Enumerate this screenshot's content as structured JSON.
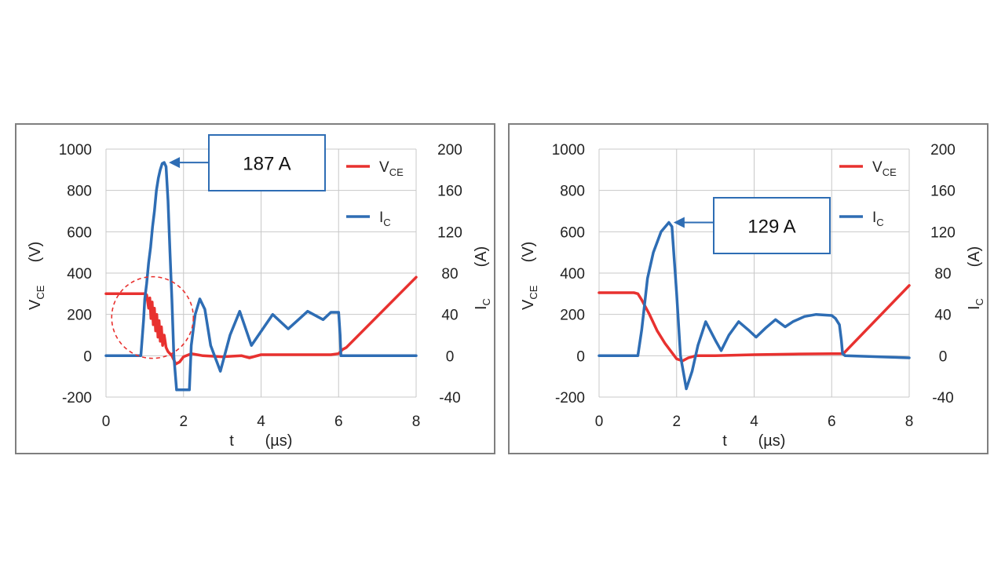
{
  "chart_data": [
    {
      "type": "line",
      "x_unit": "µs",
      "xlabel": "t",
      "xlabel_unit": "(µs)",
      "ylabel_left": "V",
      "ylabel_left_sub": "CE",
      "ylabel_left_unit": "(V)",
      "ylabel_right": "I",
      "ylabel_right_sub": "C",
      "ylabel_right_unit": "(A)",
      "xlim": [
        0,
        8
      ],
      "ylim_left": [
        -200,
        1000
      ],
      "ylim_right": [
        -40,
        200
      ],
      "x_ticks": [
        "0",
        "2",
        "4",
        "6",
        "8"
      ],
      "y_left_ticks": [
        "1000",
        "800",
        "600",
        "400",
        "200",
        "0",
        "-200"
      ],
      "y_right_ticks": [
        "200",
        "160",
        "120",
        "80",
        "40",
        "0",
        "-40"
      ],
      "grid": true,
      "legend_position": "top-right",
      "annotation": "187 A",
      "annotation_point": [
        1.5,
        187
      ],
      "highlight_circle_center": [
        1.2,
        37
      ],
      "series": [
        {
          "name": "V",
          "name_sub": "CE",
          "axis": "left",
          "color": "#e8312f",
          "x": [
            0,
            1.0,
            1.05,
            1.1,
            1.13,
            1.16,
            1.19,
            1.22,
            1.25,
            1.28,
            1.31,
            1.34,
            1.37,
            1.4,
            1.43,
            1.46,
            1.5,
            1.55,
            1.6,
            1.7,
            1.8,
            1.9,
            2.0,
            2.2,
            2.5,
            3.0,
            3.5,
            3.7,
            4.0,
            5.0,
            5.8,
            6.0,
            6.1,
            6.2,
            8.0
          ],
          "y": [
            300,
            300,
            295,
            230,
            280,
            180,
            260,
            150,
            230,
            120,
            200,
            90,
            170,
            70,
            140,
            50,
            100,
            40,
            20,
            0,
            -40,
            -30,
            -5,
            10,
            0,
            -5,
            0,
            -10,
            5,
            5,
            5,
            10,
            30,
            40,
            380
          ]
        },
        {
          "name": "I",
          "name_sub": "C",
          "axis": "right",
          "color": "#2e6db4",
          "x": [
            0,
            0.9,
            0.92,
            0.97,
            1.0,
            1.05,
            1.1,
            1.15,
            1.2,
            1.25,
            1.3,
            1.35,
            1.4,
            1.45,
            1.5,
            1.55,
            1.6,
            1.65,
            1.7,
            1.75,
            1.82,
            1.85,
            2.0,
            2.15,
            2.2,
            2.3,
            2.42,
            2.55,
            2.7,
            2.95,
            3.2,
            3.45,
            3.75,
            4.3,
            4.7,
            5.2,
            5.6,
            5.8,
            5.9,
            6.0,
            6.04,
            6.06,
            6.1,
            8.0
          ],
          "y": [
            0,
            0,
            10,
            35,
            55,
            70,
            90,
            105,
            125,
            140,
            160,
            172,
            180,
            186,
            187,
            183,
            150,
            100,
            55,
            0,
            -33,
            -33,
            -33,
            -33,
            10,
            40,
            55,
            45,
            10,
            -15,
            20,
            43,
            10,
            40,
            26,
            43,
            35,
            42,
            42,
            42,
            20,
            0,
            0,
            0
          ]
        }
      ]
    },
    {
      "type": "line",
      "x_unit": "µs",
      "xlabel": "t",
      "xlabel_unit": "(µs)",
      "ylabel_left": "V",
      "ylabel_left_sub": "CE",
      "ylabel_left_unit": "(V)",
      "ylabel_right": "I",
      "ylabel_right_sub": "C",
      "ylabel_right_unit": "(A)",
      "xlim": [
        0,
        8
      ],
      "ylim_left": [
        -200,
        1000
      ],
      "ylim_right": [
        -40,
        200
      ],
      "x_ticks": [
        "0",
        "2",
        "4",
        "6",
        "8"
      ],
      "y_left_ticks": [
        "1000",
        "800",
        "600",
        "400",
        "200",
        "0",
        "-200"
      ],
      "y_right_ticks": [
        "200",
        "160",
        "120",
        "80",
        "40",
        "0",
        "-40"
      ],
      "grid": true,
      "legend_position": "top-right",
      "annotation": "129 A",
      "annotation_point": [
        1.8,
        129
      ],
      "series": [
        {
          "name": "V",
          "name_sub": "CE",
          "axis": "left",
          "color": "#e8312f",
          "x": [
            0,
            0.9,
            1.0,
            1.1,
            1.3,
            1.5,
            1.7,
            1.9,
            2.0,
            2.15,
            2.3,
            2.5,
            3.0,
            4.0,
            5.0,
            6.0,
            6.3,
            8.0
          ],
          "y": [
            305,
            305,
            300,
            270,
            200,
            120,
            60,
            10,
            -15,
            -25,
            -10,
            0,
            0,
            5,
            8,
            10,
            10,
            340
          ]
        },
        {
          "name": "I",
          "name_sub": "C",
          "axis": "right",
          "color": "#2e6db4",
          "x": [
            0,
            1.0,
            1.1,
            1.25,
            1.4,
            1.6,
            1.8,
            1.88,
            2.0,
            2.1,
            2.25,
            2.4,
            2.55,
            2.75,
            3.0,
            3.15,
            3.35,
            3.6,
            3.85,
            4.05,
            4.3,
            4.55,
            4.8,
            5.0,
            5.3,
            5.6,
            6.0,
            6.1,
            6.2,
            6.25,
            6.28,
            6.35,
            8.0
          ],
          "y": [
            0,
            0,
            25,
            75,
            100,
            120,
            129,
            125,
            60,
            0,
            -32,
            -15,
            10,
            33,
            15,
            5,
            20,
            33,
            25,
            18,
            27,
            35,
            28,
            33,
            38,
            40,
            39,
            36,
            30,
            15,
            2,
            0,
            -2
          ]
        }
      ]
    }
  ]
}
